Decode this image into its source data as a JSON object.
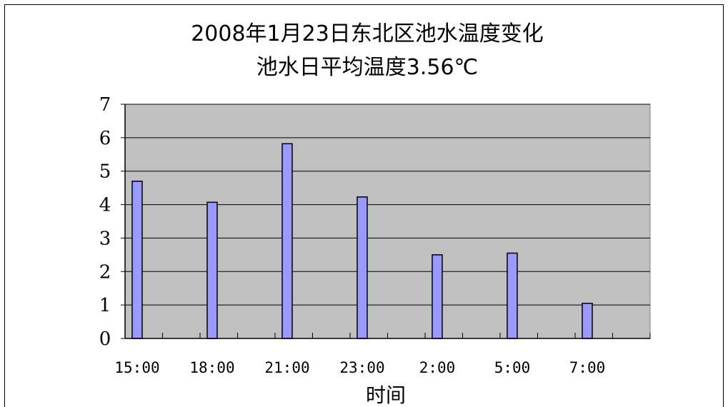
{
  "chart_data": {
    "type": "bar",
    "title": "2008年1月23日东北区池水温度变化",
    "subtitle": "池水日平均温度3.56℃",
    "xlabel": "时间",
    "ylabel": "",
    "categories": [
      "15:00",
      "18:00",
      "21:00",
      "23:00",
      "2:00",
      "5:00",
      "7:00"
    ],
    "values": [
      4.7,
      4.07,
      5.82,
      4.23,
      2.5,
      2.55,
      1.05
    ],
    "ylim": [
      0,
      7
    ],
    "yticks": [
      "0",
      "1",
      "2",
      "3",
      "4",
      "5",
      "6",
      "7"
    ],
    "grid": true,
    "legend": "none",
    "colors": {
      "bar": "#9999ff",
      "plot_background": "#c0c0c0",
      "gridline": "#000000",
      "axis": "#000000"
    }
  }
}
